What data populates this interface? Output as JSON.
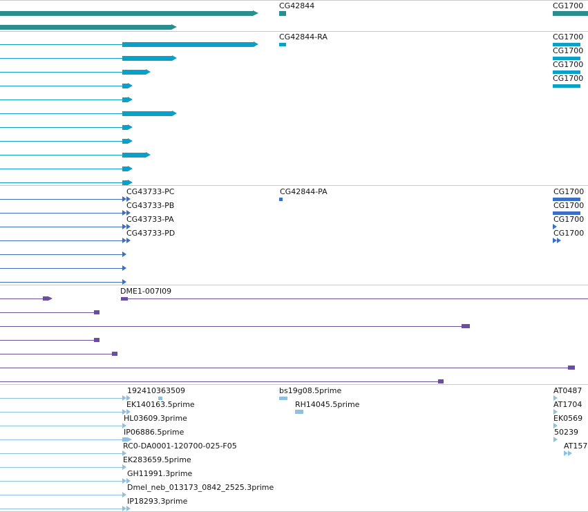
{
  "colors": {
    "gene_track": "#2a8e8e",
    "transcript_track": "#0aa0c8",
    "cds_track": "#3a6fc4",
    "clone_track": "#6a4fa0",
    "est_track": "#8ec1e0",
    "separator": "#c8c8c8"
  },
  "tracks": {
    "genes": {
      "labels": [
        "CG42844",
        "CG1700"
      ]
    },
    "transcripts": {
      "labels": [
        "CG42844-RA",
        "CG1700",
        "CG1700",
        "CG1700",
        "CG1700"
      ]
    },
    "cds": {
      "labels": [
        "CG43733-PC",
        "CG43733-PB",
        "CG43733-PA",
        "CG43733-PD",
        "CG42844-PA",
        "CG1700",
        "CG1700",
        "CG1700",
        "CG1700"
      ]
    },
    "clones": {
      "labels": [
        "DME1-007I09"
      ]
    },
    "ests": {
      "labels": [
        "192410363509",
        "bs19g08.5prime",
        "AT0487",
        "EK140163.5prime",
        "RH14045.5prime",
        "AT1704",
        "HL03609.3prime",
        "EK0569",
        "IP06886.5prime",
        "50239",
        "RC0-DA0001-120700-025-F05",
        "AT157",
        "EK283659.5prime",
        "GH11991.3prime",
        "Dmel_neb_013173_0842_2525.3prime",
        "IP18293.3prime"
      ]
    }
  }
}
